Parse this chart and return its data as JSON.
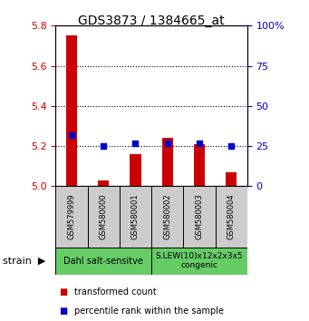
{
  "title": "GDS3873 / 1384665_at",
  "samples": [
    "GSM579999",
    "GSM580000",
    "GSM580001",
    "GSM580002",
    "GSM580003",
    "GSM580004"
  ],
  "transformed_count": [
    5.75,
    5.03,
    5.16,
    5.24,
    5.21,
    5.07
  ],
  "percentile_rank": [
    32,
    25,
    27,
    27,
    27,
    25
  ],
  "ylim_left": [
    5.0,
    5.8
  ],
  "ylim_right": [
    0,
    100
  ],
  "yticks_left": [
    5.0,
    5.2,
    5.4,
    5.6,
    5.8
  ],
  "yticks_right": [
    0,
    25,
    50,
    75,
    100
  ],
  "ylabel_left_color": "#cc0000",
  "ylabel_right_color": "#0000cc",
  "bar_color": "#cc0000",
  "dot_color": "#0000cc",
  "group1_label": "Dahl salt-sensitve",
  "group2_label": "S.LEW(10)x12x2x3x5\ncongenic",
  "group1_samples": [
    0,
    1,
    2
  ],
  "group2_samples": [
    3,
    4,
    5
  ],
  "group_bg_color": "#66cc66",
  "sample_bg_color": "#cccccc",
  "legend_red_label": "transformed count",
  "legend_blue_label": "percentile rank within the sample"
}
